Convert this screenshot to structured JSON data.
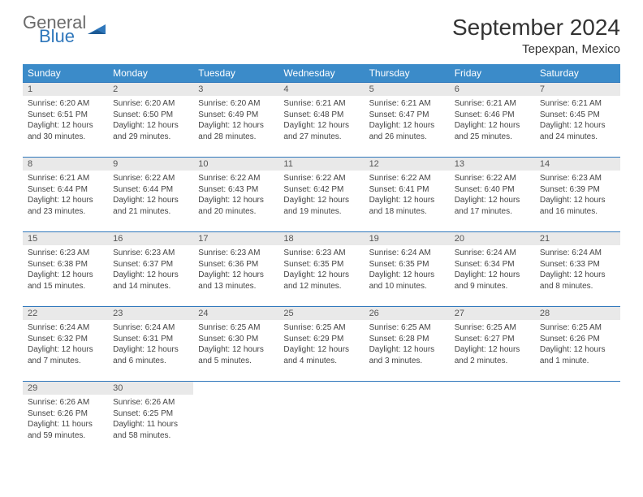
{
  "logo": {
    "general": "General",
    "blue": "Blue"
  },
  "title": "September 2024",
  "location": "Tepexpan, Mexico",
  "weekdays": [
    "Sunday",
    "Monday",
    "Tuesday",
    "Wednesday",
    "Thursday",
    "Friday",
    "Saturday"
  ],
  "colors": {
    "header_bg": "#3b8bc9",
    "header_text": "#ffffff",
    "border": "#2f77bb",
    "daynum_bg": "#e9e9e9",
    "logo_gray": "#6b6b6b",
    "logo_blue": "#2f77bb"
  },
  "weeks": [
    [
      {
        "day": "1",
        "sunrise": "Sunrise: 6:20 AM",
        "sunset": "Sunset: 6:51 PM",
        "daylight": "Daylight: 12 hours and 30 minutes."
      },
      {
        "day": "2",
        "sunrise": "Sunrise: 6:20 AM",
        "sunset": "Sunset: 6:50 PM",
        "daylight": "Daylight: 12 hours and 29 minutes."
      },
      {
        "day": "3",
        "sunrise": "Sunrise: 6:20 AM",
        "sunset": "Sunset: 6:49 PM",
        "daylight": "Daylight: 12 hours and 28 minutes."
      },
      {
        "day": "4",
        "sunrise": "Sunrise: 6:21 AM",
        "sunset": "Sunset: 6:48 PM",
        "daylight": "Daylight: 12 hours and 27 minutes."
      },
      {
        "day": "5",
        "sunrise": "Sunrise: 6:21 AM",
        "sunset": "Sunset: 6:47 PM",
        "daylight": "Daylight: 12 hours and 26 minutes."
      },
      {
        "day": "6",
        "sunrise": "Sunrise: 6:21 AM",
        "sunset": "Sunset: 6:46 PM",
        "daylight": "Daylight: 12 hours and 25 minutes."
      },
      {
        "day": "7",
        "sunrise": "Sunrise: 6:21 AM",
        "sunset": "Sunset: 6:45 PM",
        "daylight": "Daylight: 12 hours and 24 minutes."
      }
    ],
    [
      {
        "day": "8",
        "sunrise": "Sunrise: 6:21 AM",
        "sunset": "Sunset: 6:44 PM",
        "daylight": "Daylight: 12 hours and 23 minutes."
      },
      {
        "day": "9",
        "sunrise": "Sunrise: 6:22 AM",
        "sunset": "Sunset: 6:44 PM",
        "daylight": "Daylight: 12 hours and 21 minutes."
      },
      {
        "day": "10",
        "sunrise": "Sunrise: 6:22 AM",
        "sunset": "Sunset: 6:43 PM",
        "daylight": "Daylight: 12 hours and 20 minutes."
      },
      {
        "day": "11",
        "sunrise": "Sunrise: 6:22 AM",
        "sunset": "Sunset: 6:42 PM",
        "daylight": "Daylight: 12 hours and 19 minutes."
      },
      {
        "day": "12",
        "sunrise": "Sunrise: 6:22 AM",
        "sunset": "Sunset: 6:41 PM",
        "daylight": "Daylight: 12 hours and 18 minutes."
      },
      {
        "day": "13",
        "sunrise": "Sunrise: 6:22 AM",
        "sunset": "Sunset: 6:40 PM",
        "daylight": "Daylight: 12 hours and 17 minutes."
      },
      {
        "day": "14",
        "sunrise": "Sunrise: 6:23 AM",
        "sunset": "Sunset: 6:39 PM",
        "daylight": "Daylight: 12 hours and 16 minutes."
      }
    ],
    [
      {
        "day": "15",
        "sunrise": "Sunrise: 6:23 AM",
        "sunset": "Sunset: 6:38 PM",
        "daylight": "Daylight: 12 hours and 15 minutes."
      },
      {
        "day": "16",
        "sunrise": "Sunrise: 6:23 AM",
        "sunset": "Sunset: 6:37 PM",
        "daylight": "Daylight: 12 hours and 14 minutes."
      },
      {
        "day": "17",
        "sunrise": "Sunrise: 6:23 AM",
        "sunset": "Sunset: 6:36 PM",
        "daylight": "Daylight: 12 hours and 13 minutes."
      },
      {
        "day": "18",
        "sunrise": "Sunrise: 6:23 AM",
        "sunset": "Sunset: 6:35 PM",
        "daylight": "Daylight: 12 hours and 12 minutes."
      },
      {
        "day": "19",
        "sunrise": "Sunrise: 6:24 AM",
        "sunset": "Sunset: 6:35 PM",
        "daylight": "Daylight: 12 hours and 10 minutes."
      },
      {
        "day": "20",
        "sunrise": "Sunrise: 6:24 AM",
        "sunset": "Sunset: 6:34 PM",
        "daylight": "Daylight: 12 hours and 9 minutes."
      },
      {
        "day": "21",
        "sunrise": "Sunrise: 6:24 AM",
        "sunset": "Sunset: 6:33 PM",
        "daylight": "Daylight: 12 hours and 8 minutes."
      }
    ],
    [
      {
        "day": "22",
        "sunrise": "Sunrise: 6:24 AM",
        "sunset": "Sunset: 6:32 PM",
        "daylight": "Daylight: 12 hours and 7 minutes."
      },
      {
        "day": "23",
        "sunrise": "Sunrise: 6:24 AM",
        "sunset": "Sunset: 6:31 PM",
        "daylight": "Daylight: 12 hours and 6 minutes."
      },
      {
        "day": "24",
        "sunrise": "Sunrise: 6:25 AM",
        "sunset": "Sunset: 6:30 PM",
        "daylight": "Daylight: 12 hours and 5 minutes."
      },
      {
        "day": "25",
        "sunrise": "Sunrise: 6:25 AM",
        "sunset": "Sunset: 6:29 PM",
        "daylight": "Daylight: 12 hours and 4 minutes."
      },
      {
        "day": "26",
        "sunrise": "Sunrise: 6:25 AM",
        "sunset": "Sunset: 6:28 PM",
        "daylight": "Daylight: 12 hours and 3 minutes."
      },
      {
        "day": "27",
        "sunrise": "Sunrise: 6:25 AM",
        "sunset": "Sunset: 6:27 PM",
        "daylight": "Daylight: 12 hours and 2 minutes."
      },
      {
        "day": "28",
        "sunrise": "Sunrise: 6:25 AM",
        "sunset": "Sunset: 6:26 PM",
        "daylight": "Daylight: 12 hours and 1 minute."
      }
    ],
    [
      {
        "day": "29",
        "sunrise": "Sunrise: 6:26 AM",
        "sunset": "Sunset: 6:26 PM",
        "daylight": "Daylight: 11 hours and 59 minutes."
      },
      {
        "day": "30",
        "sunrise": "Sunrise: 6:26 AM",
        "sunset": "Sunset: 6:25 PM",
        "daylight": "Daylight: 11 hours and 58 minutes."
      },
      null,
      null,
      null,
      null,
      null
    ]
  ]
}
